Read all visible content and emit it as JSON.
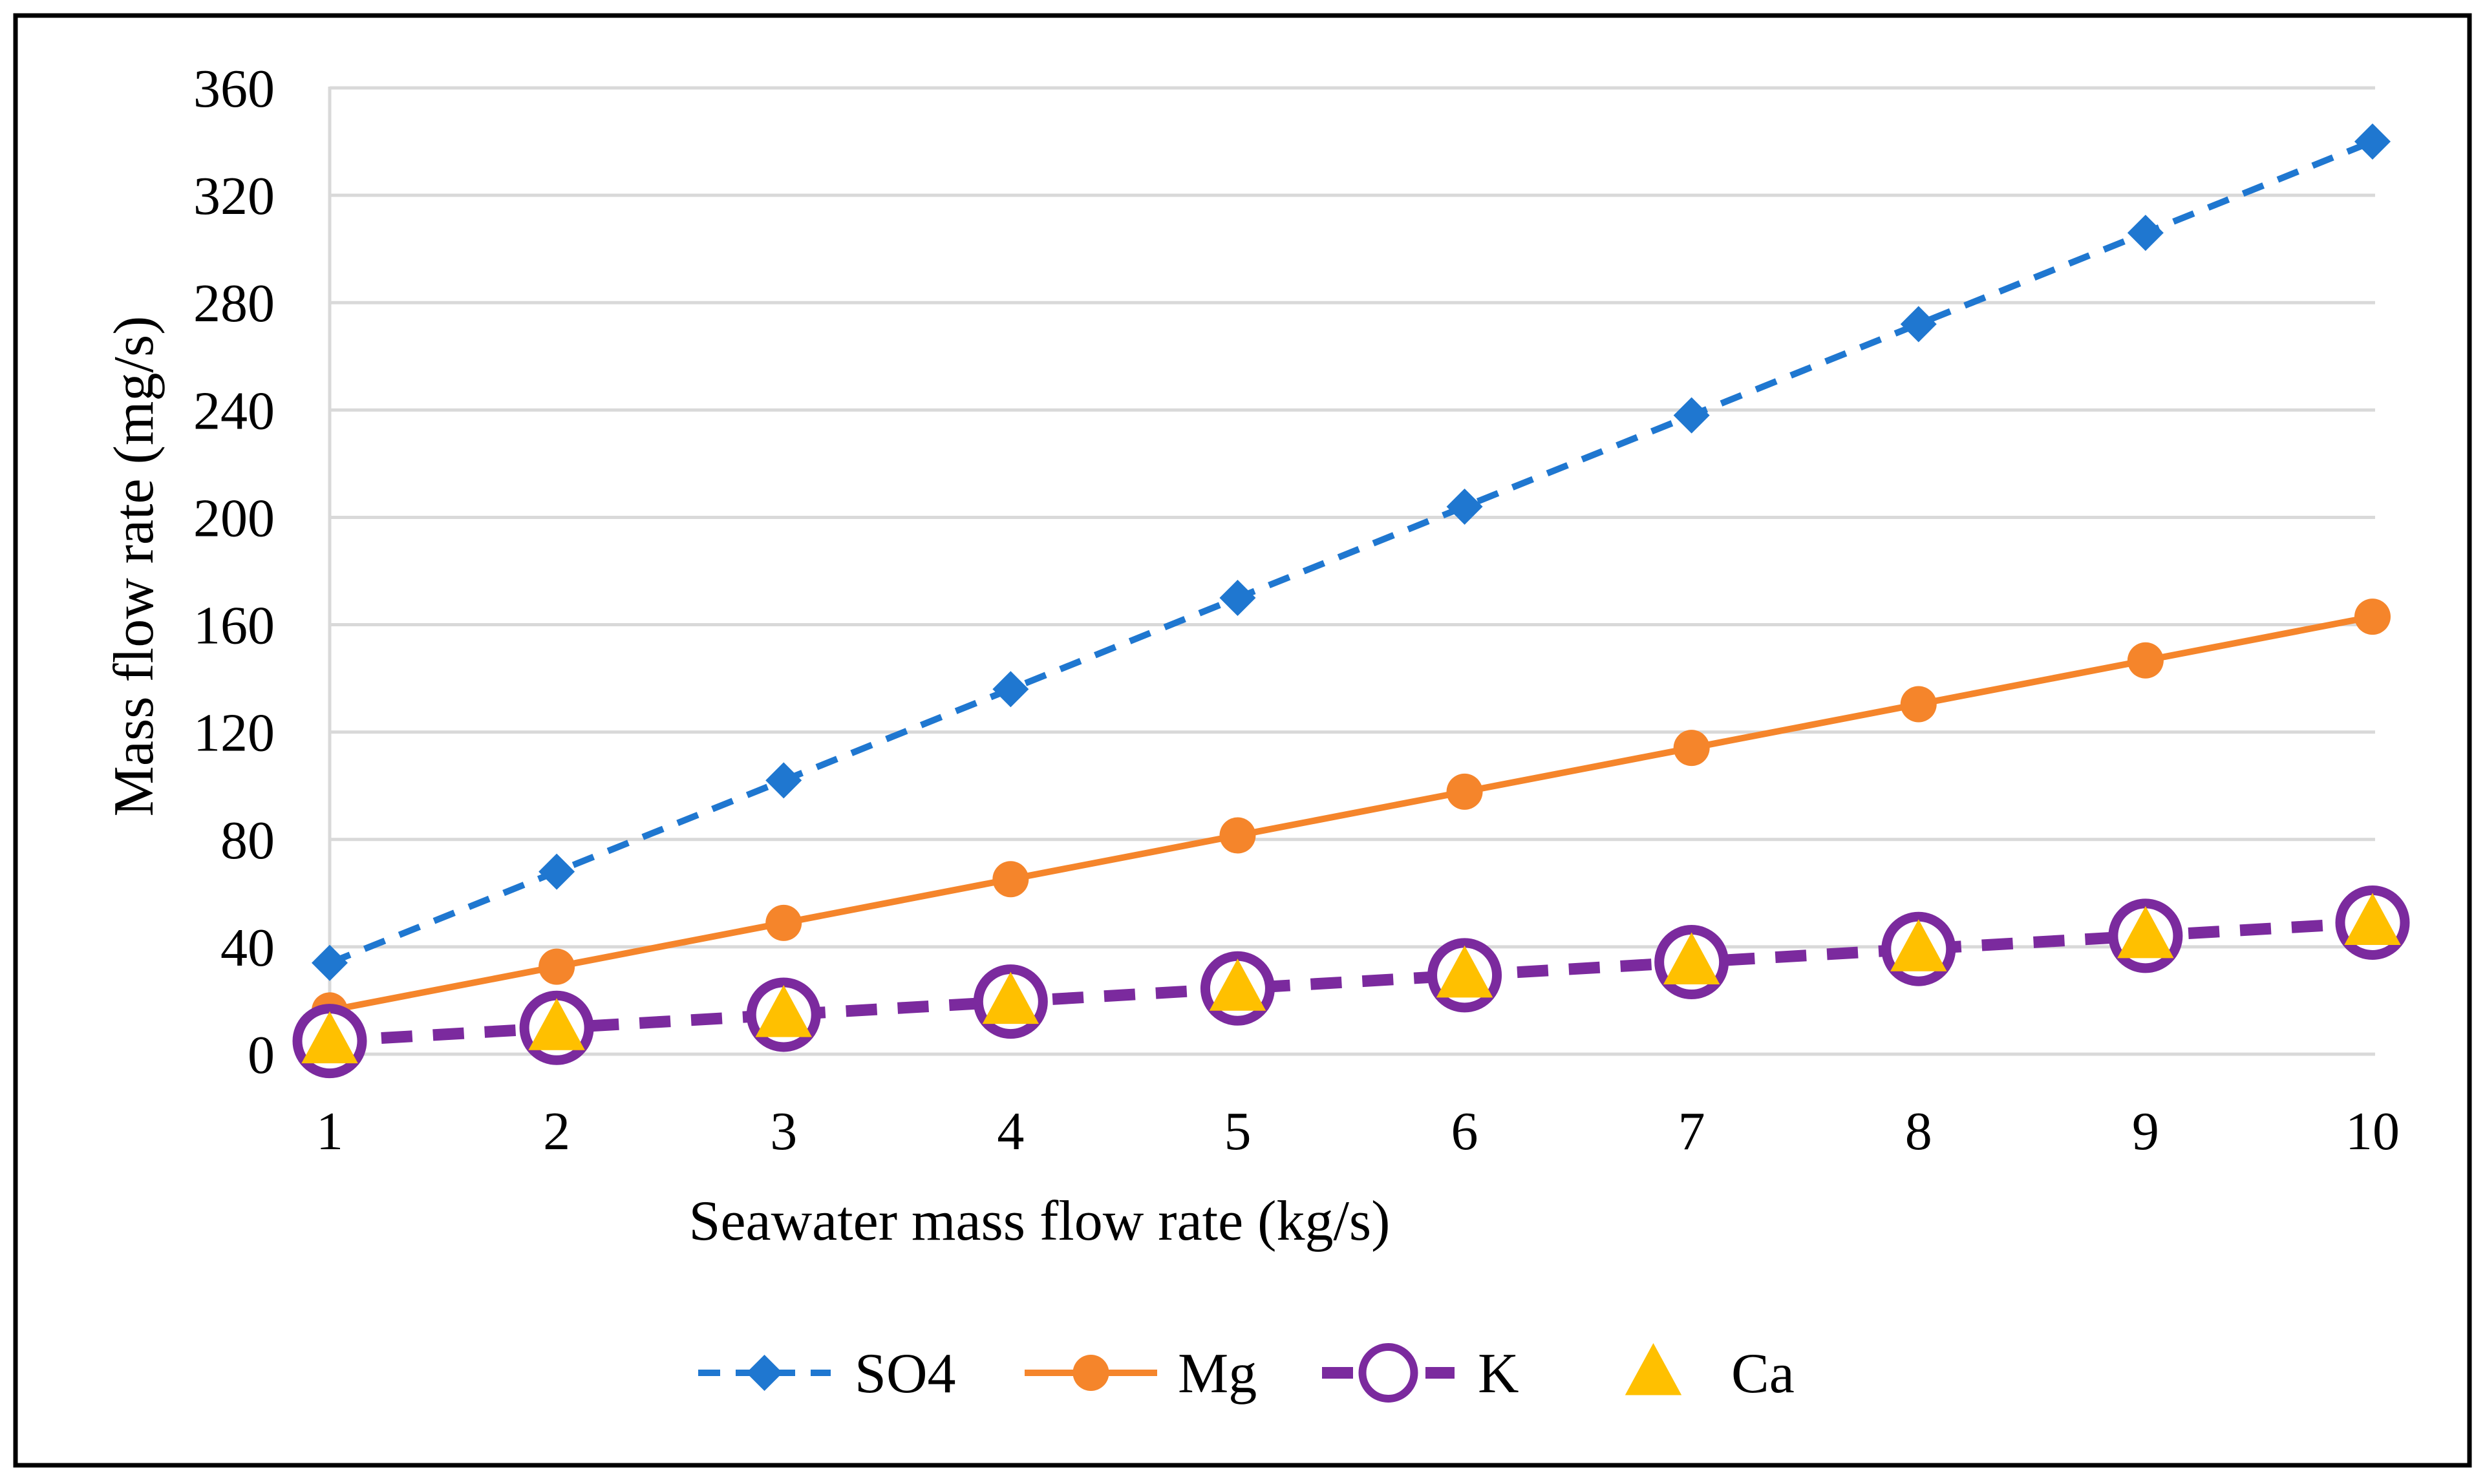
{
  "chart_data": {
    "type": "line",
    "title": "",
    "xlabel": "Seawater mass flow rate (kg/s)",
    "ylabel": "Mass flow rate (mg/s)",
    "categories": [
      1,
      2,
      3,
      4,
      5,
      6,
      7,
      8,
      9,
      10
    ],
    "category_labels": [
      "1",
      "2",
      "3",
      "4",
      "5",
      "6",
      "7",
      "8",
      "9",
      "10"
    ],
    "ylim": [
      0,
      360
    ],
    "yticks": [
      0,
      40,
      80,
      120,
      160,
      200,
      240,
      280,
      320,
      360
    ],
    "ytick_labels": [
      "0",
      "40",
      "80",
      "120",
      "160",
      "200",
      "240",
      "280",
      "320",
      "360"
    ],
    "grid": "horizontal",
    "legend_position": "bottom",
    "series": [
      {
        "name": "SO4",
        "color": "#1F77D0",
        "line": "dashed",
        "marker": "diamond",
        "values": [
          34,
          68,
          102,
          136,
          170,
          204,
          238,
          272,
          306,
          340
        ]
      },
      {
        "name": "Mg",
        "color": "#F5852B",
        "line": "solid",
        "marker": "circle-filled",
        "values": [
          16.3,
          32.6,
          48.9,
          65.2,
          81.5,
          97.8,
          114.1,
          130.4,
          146.7,
          163
        ]
      },
      {
        "name": "K",
        "color": "#7B2A9E",
        "line": "dashed",
        "marker": "circle-open",
        "values": [
          4.9,
          9.8,
          14.7,
          19.6,
          24.5,
          29.4,
          34.3,
          39.2,
          44.1,
          49
        ]
      },
      {
        "name": "Ca",
        "color": "#FFC000",
        "line": "none",
        "marker": "triangle",
        "values": [
          4.9,
          9.8,
          14.7,
          19.6,
          24.5,
          29.4,
          34.3,
          39.2,
          44.1,
          49
        ]
      }
    ]
  }
}
